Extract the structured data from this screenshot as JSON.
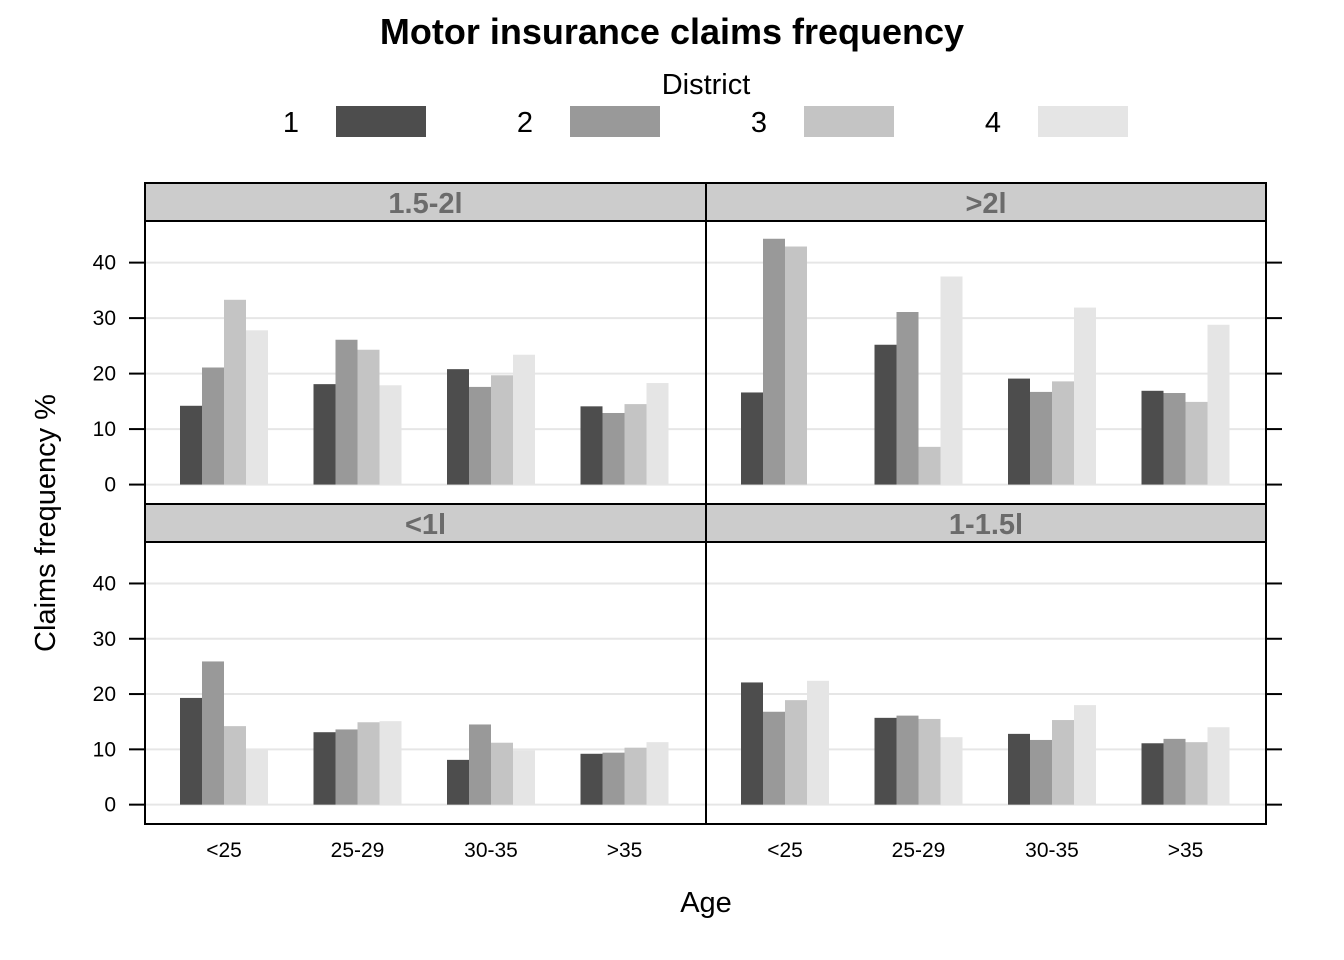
{
  "chart_data": {
    "type": "bar",
    "title": "Motor insurance claims frequency",
    "xlabel": "Age",
    "ylabel": "Claims frequency %",
    "legend": {
      "title": "District",
      "position": "top",
      "entries": [
        {
          "label": "1",
          "color": "#4d4d4d"
        },
        {
          "label": "2",
          "color": "#999999"
        },
        {
          "label": "3",
          "color": "#c4c4c4"
        },
        {
          "label": "4",
          "color": "#e5e5e5"
        }
      ]
    },
    "categories": [
      "<25",
      "25-29",
      "30-35",
      ">35"
    ],
    "yticks": [
      0,
      10,
      20,
      30,
      40
    ],
    "ylim": [
      -3.5,
      47.5
    ],
    "grid": true,
    "panels": [
      {
        "strip": "1.5-2l",
        "series": [
          {
            "name": "1",
            "values": [
              14.2,
              18.1,
              20.8,
              14.1
            ]
          },
          {
            "name": "2",
            "values": [
              21.1,
              26.1,
              17.6,
              12.9
            ]
          },
          {
            "name": "3",
            "values": [
              33.3,
              24.3,
              19.7,
              14.5
            ]
          },
          {
            "name": "4",
            "values": [
              27.8,
              17.9,
              23.4,
              18.3
            ]
          }
        ]
      },
      {
        "strip": ">2l",
        "series": [
          {
            "name": "1",
            "values": [
              16.6,
              25.2,
              19.1,
              16.9
            ]
          },
          {
            "name": "2",
            "values": [
              44.3,
              31.1,
              16.7,
              16.5
            ]
          },
          {
            "name": "3",
            "values": [
              42.9,
              6.8,
              18.6,
              14.9
            ]
          },
          {
            "name": "4",
            "values": [
              0,
              37.5,
              31.9,
              28.8
            ]
          }
        ]
      },
      {
        "strip": "<1l",
        "series": [
          {
            "name": "1",
            "values": [
              19.3,
              13.1,
              8.1,
              9.2
            ]
          },
          {
            "name": "2",
            "values": [
              25.9,
              13.6,
              14.5,
              9.4
            ]
          },
          {
            "name": "3",
            "values": [
              14.2,
              14.9,
              11.2,
              10.3
            ]
          },
          {
            "name": "4",
            "values": [
              9.9,
              15.1,
              9.8,
              11.3
            ]
          }
        ]
      },
      {
        "strip": "1-1.5l",
        "series": [
          {
            "name": "1",
            "values": [
              22.1,
              15.7,
              12.8,
              11.1
            ]
          },
          {
            "name": "2",
            "values": [
              16.8,
              16.1,
              11.7,
              11.9
            ]
          },
          {
            "name": "3",
            "values": [
              18.9,
              15.5,
              15.3,
              11.3
            ]
          },
          {
            "name": "4",
            "values": [
              22.4,
              12.2,
              18.0,
              14.0
            ]
          }
        ]
      }
    ]
  }
}
